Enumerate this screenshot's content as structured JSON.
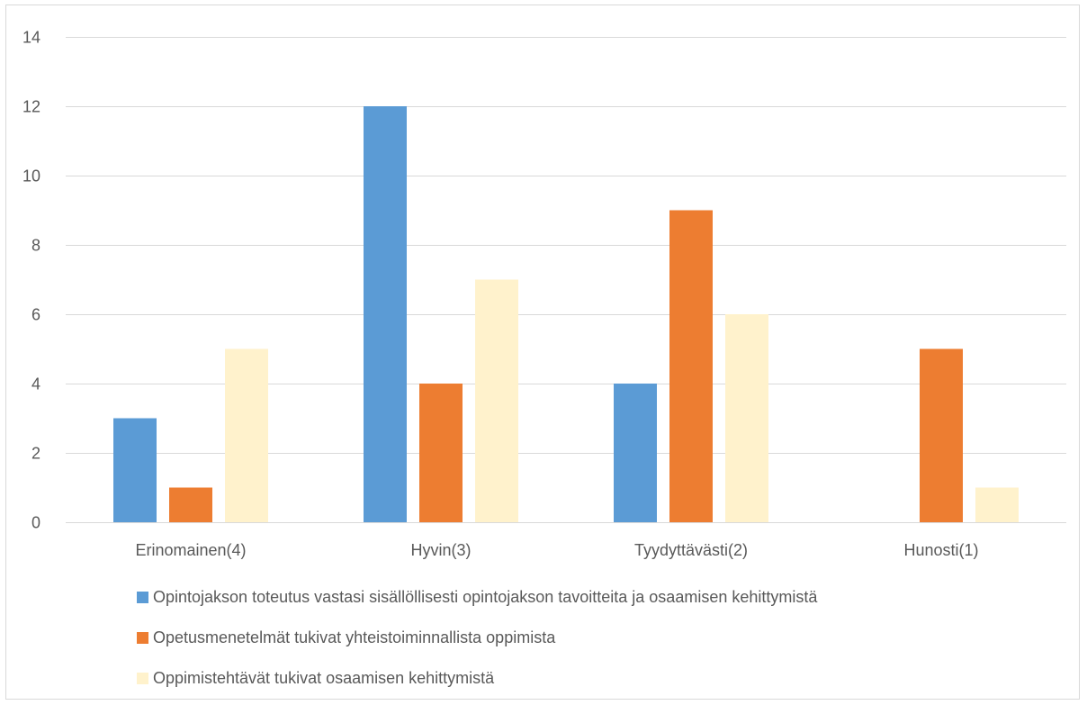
{
  "chart_data": {
    "type": "bar",
    "categories": [
      "Erinomainen(4)",
      "Hyvin(3)",
      "Tyydyttävästi(2)",
      "Hunosti(1)"
    ],
    "series": [
      {
        "name": "Opintojakson toteutus vastasi sisällöllisesti opintojakson tavoitteita ja osaamisen kehittymistä",
        "values": [
          3,
          12,
          4,
          0
        ],
        "color": "#5b9bd5"
      },
      {
        "name": "Opetusmenetelmät tukivat yhteistoiminnallista oppimista",
        "values": [
          1,
          4,
          9,
          5
        ],
        "color": "#ed7d31"
      },
      {
        "name": "Oppimistehtävät tukivat osaamisen kehittymistä",
        "values": [
          5,
          7,
          6,
          1
        ],
        "color": "#fff2cc"
      }
    ],
    "yticks": [
      "0",
      "2",
      "4",
      "6",
      "8",
      "10",
      "12",
      "14"
    ],
    "ylim": [
      0,
      14
    ],
    "grid": true,
    "legend_position": "bottom"
  }
}
